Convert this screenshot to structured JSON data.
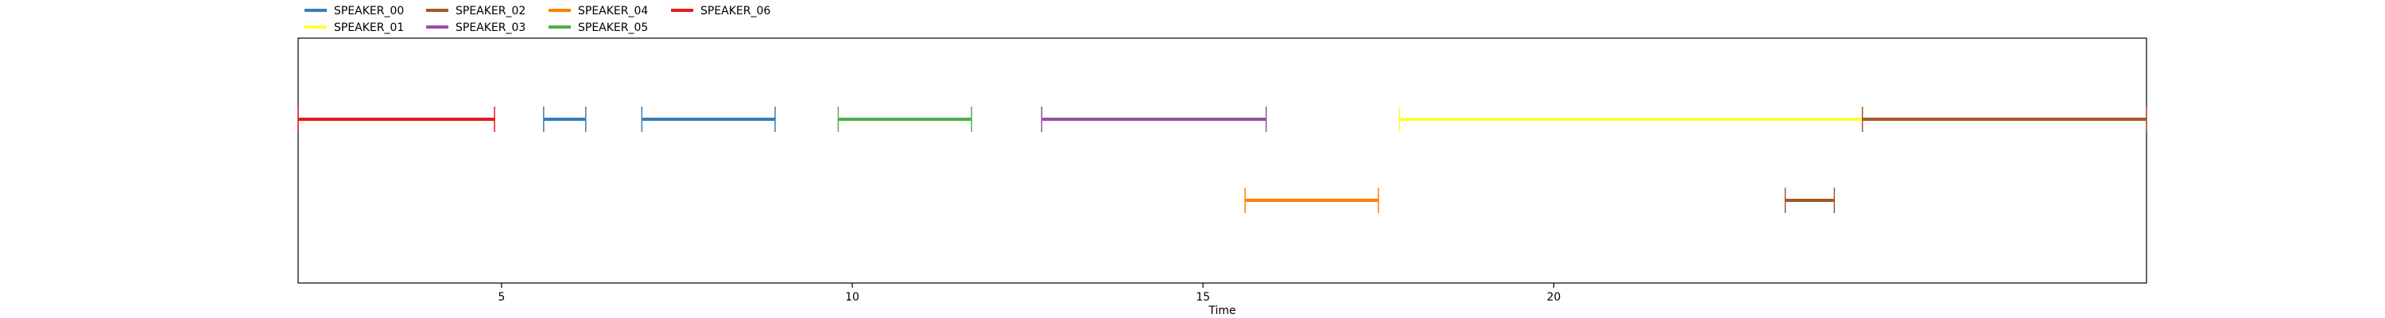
{
  "chart_data": {
    "type": "timeline",
    "title": "",
    "xlabel": "Time",
    "ylabel": "",
    "xlim": [
      2.1,
      28.45
    ],
    "xticks": [
      5,
      10,
      15,
      20
    ],
    "tick_labels": [
      "5",
      "10",
      "15",
      "20"
    ],
    "grid": false,
    "legend": {
      "placement": "top-left",
      "entries": [
        {
          "name": "SPEAKER_00",
          "color": "#377eb8"
        },
        {
          "name": "SPEAKER_01",
          "color": "#ffff33"
        },
        {
          "name": "SPEAKER_02",
          "color": "#a65628"
        },
        {
          "name": "SPEAKER_03",
          "color": "#984ea3"
        },
        {
          "name": "SPEAKER_04",
          "color": "#ff7f00"
        },
        {
          "name": "SPEAKER_05",
          "color": "#4daf4a"
        },
        {
          "name": "SPEAKER_06",
          "color": "#e41a1c"
        }
      ]
    },
    "segments": [
      {
        "speaker": "SPEAKER_06",
        "start": 2.1,
        "end": 4.9,
        "track": 0
      },
      {
        "speaker": "SPEAKER_00",
        "start": 5.6,
        "end": 6.2,
        "track": 0
      },
      {
        "speaker": "SPEAKER_00",
        "start": 7.0,
        "end": 8.9,
        "track": 0
      },
      {
        "speaker": "SPEAKER_05",
        "start": 9.8,
        "end": 11.7,
        "track": 0
      },
      {
        "speaker": "SPEAKER_03",
        "start": 12.7,
        "end": 15.9,
        "track": 0
      },
      {
        "speaker": "SPEAKER_04",
        "start": 15.6,
        "end": 17.5,
        "track": 1
      },
      {
        "speaker": "SPEAKER_01",
        "start": 17.8,
        "end": 24.4,
        "track": 0
      },
      {
        "speaker": "SPEAKER_02",
        "start": 23.3,
        "end": 24.0,
        "track": 1
      },
      {
        "speaker": "SPEAKER_02",
        "start": 24.4,
        "end": 28.45,
        "track": 0
      }
    ]
  }
}
